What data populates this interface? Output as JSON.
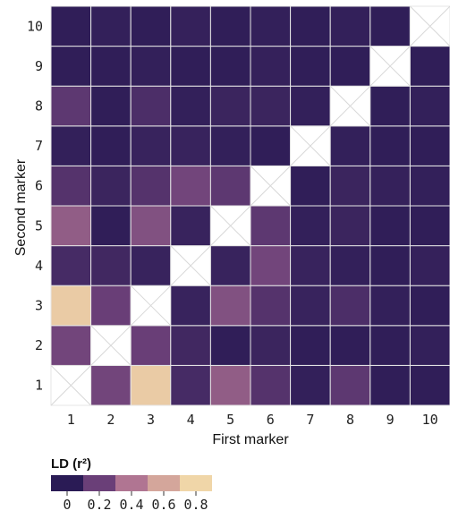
{
  "chart_data": {
    "type": "heatmap",
    "title": "",
    "xlabel": "First marker",
    "ylabel": "Second marker",
    "x_categories": [
      "1",
      "2",
      "3",
      "4",
      "5",
      "6",
      "7",
      "8",
      "9",
      "10"
    ],
    "y_categories": [
      "1",
      "2",
      "3",
      "4",
      "5",
      "6",
      "7",
      "8",
      "9",
      "10"
    ],
    "diagonal": "not-applicable",
    "rows": [
      {
        "marker": "1",
        "values": [
          null,
          0.25,
          0.85,
          0.1,
          0.35,
          0.15,
          0.03,
          0.18,
          0.02,
          0.02
        ]
      },
      {
        "marker": "2",
        "values": [
          0.25,
          null,
          0.22,
          0.08,
          0.02,
          0.06,
          0.02,
          0.02,
          0.02,
          0.03
        ]
      },
      {
        "marker": "3",
        "values": [
          0.85,
          0.22,
          null,
          0.05,
          0.3,
          0.15,
          0.05,
          0.12,
          0.03,
          0.02
        ]
      },
      {
        "marker": "4",
        "values": [
          0.1,
          0.08,
          0.05,
          null,
          0.05,
          0.25,
          0.05,
          0.03,
          0.02,
          0.04
        ]
      },
      {
        "marker": "5",
        "values": [
          0.35,
          0.02,
          0.3,
          0.05,
          null,
          0.18,
          0.03,
          0.06,
          0.02,
          0.02
        ]
      },
      {
        "marker": "6",
        "values": [
          0.15,
          0.06,
          0.15,
          0.25,
          0.18,
          null,
          0.02,
          0.06,
          0.04,
          0.03
        ]
      },
      {
        "marker": "7",
        "values": [
          0.03,
          0.02,
          0.05,
          0.05,
          0.03,
          0.02,
          null,
          0.03,
          0.02,
          0.02
        ]
      },
      {
        "marker": "8",
        "values": [
          0.18,
          0.02,
          0.12,
          0.03,
          0.06,
          0.06,
          0.03,
          null,
          0.02,
          0.03
        ]
      },
      {
        "marker": "9",
        "values": [
          0.02,
          0.02,
          0.03,
          0.02,
          0.02,
          0.04,
          0.02,
          0.02,
          null,
          0.02
        ]
      },
      {
        "marker": "10",
        "values": [
          0.02,
          0.03,
          0.02,
          0.04,
          0.02,
          0.03,
          0.02,
          0.03,
          0.02,
          null
        ]
      }
    ],
    "color_scale": {
      "title": "LD (r²)",
      "domain": [
        0,
        0.9
      ],
      "colors": [
        "#2a1b55",
        "#6a3f78",
        "#b07592",
        "#d4a69b",
        "#f0d6a8"
      ],
      "tick_labels": [
        "0",
        "0.2",
        "0.4",
        "0.6",
        "0.8"
      ],
      "tick_values": [
        0,
        0.2,
        0.4,
        0.6,
        0.8
      ]
    }
  }
}
